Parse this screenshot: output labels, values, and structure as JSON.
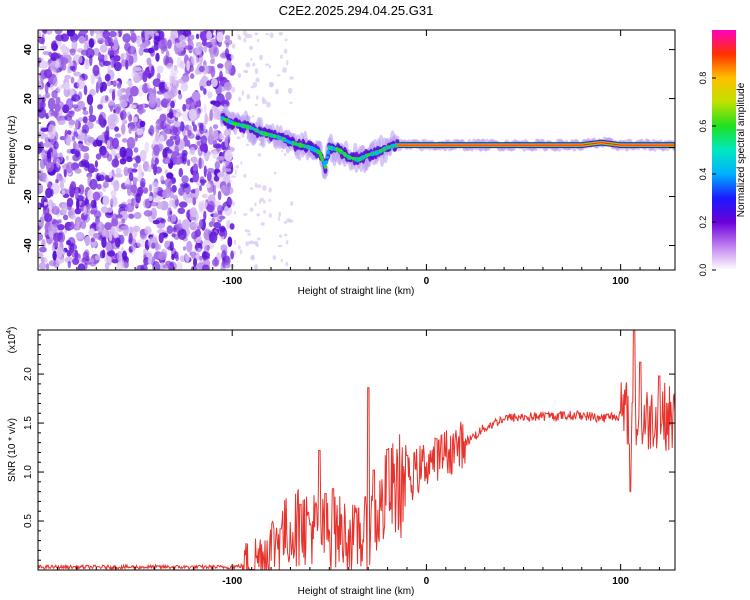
{
  "title": "C2E2.2025.294.04.25.G31",
  "chart_data": [
    {
      "type": "heatmap",
      "panel": "top",
      "xlabel": "Height of straight line (km)",
      "ylabel": "Frequency (Hz)",
      "xlim": [
        -200,
        128
      ],
      "ylim": [
        -50,
        48
      ],
      "xticks": [
        -100,
        0,
        100
      ],
      "yticks": [
        -40,
        -20,
        0,
        20,
        40
      ],
      "noise_region_x": [
        -200,
        -100
      ],
      "noise_region_y": [
        -50,
        48
      ],
      "ridge": {
        "x": [
          -105,
          -100,
          -95,
          -90,
          -85,
          -80,
          -75,
          -70,
          -65,
          -60,
          -55,
          -52,
          -50,
          -45,
          -40,
          -35,
          -30,
          -25,
          -20,
          -15,
          -10,
          0,
          20,
          40,
          60,
          80,
          90,
          100,
          110,
          120,
          128
        ],
        "y": [
          12,
          10,
          9,
          8,
          6,
          5,
          4,
          2,
          1,
          0,
          -2,
          -8,
          0,
          -1,
          -4,
          -5,
          -3,
          -2,
          0,
          1,
          1,
          1,
          1,
          1,
          1,
          1,
          2,
          1,
          1,
          1,
          1
        ]
      },
      "colorbar": {
        "label": "Normalized spectral amplitude",
        "min": 0,
        "max": 1,
        "ticks": [
          0.0,
          0.2,
          0.4,
          0.6,
          0.8
        ],
        "tick_labels": [
          "0.0",
          "0.2",
          "0.4",
          "0.6",
          "0.8"
        ],
        "colors": [
          "#ffffff",
          "#c080f0",
          "#6a00d8",
          "#1a1aff",
          "#00b0ff",
          "#00e8c0",
          "#20e020",
          "#c0e000",
          "#ffc000",
          "#ff3000",
          "#ff00c0"
        ]
      }
    },
    {
      "type": "line",
      "panel": "bottom",
      "xlabel": "Height of straight line (km)",
      "ylabel": "SNR (10 * v/v)",
      "multiplier_label": "(x10",
      "multiplier_exp": "4",
      "xlim": [
        -200,
        128
      ],
      "ylim": [
        0,
        2.45
      ],
      "xticks": [
        -100,
        0,
        100
      ],
      "yticks": [
        0.5,
        1.0,
        1.5,
        2.0
      ],
      "ytick_labels": [
        "0.5",
        "1.0",
        "1.5",
        "2.0"
      ],
      "line_color": "#e8312a",
      "trend": {
        "x": [
          -200,
          -100,
          -92,
          -85,
          -80,
          -75,
          -70,
          -65,
          -60,
          -55,
          -50,
          -45,
          -40,
          -35,
          -30,
          -25,
          -20,
          -15,
          -10,
          -5,
          0,
          10,
          20,
          30,
          40,
          60,
          80,
          90,
          100,
          105,
          110,
          115,
          120,
          128
        ],
        "y": [
          0.03,
          0.03,
          0.05,
          0.15,
          0.25,
          0.35,
          0.4,
          0.45,
          0.45,
          0.4,
          0.35,
          0.4,
          0.35,
          0.3,
          0.4,
          0.55,
          0.75,
          0.85,
          0.9,
          1.0,
          1.1,
          1.2,
          1.3,
          1.45,
          1.55,
          1.57,
          1.58,
          1.55,
          1.58,
          1.6,
          1.5,
          1.55,
          1.6,
          1.52
        ]
      },
      "spikes": [
        {
          "x": -75,
          "y": 0.42
        },
        {
          "x": -65,
          "y": 0.67
        },
        {
          "x": -55,
          "y": 1.22
        },
        {
          "x": -52,
          "y": 0.78
        },
        {
          "x": -48,
          "y": 0.83
        },
        {
          "x": -35,
          "y": 0.63
        },
        {
          "x": -30,
          "y": 1.86
        },
        {
          "x": -27,
          "y": 1.02
        },
        {
          "x": -20,
          "y": 1.23
        },
        {
          "x": -10,
          "y": 1.17
        },
        {
          "x": 5,
          "y": 1.34
        },
        {
          "x": 107,
          "y": 2.45
        },
        {
          "x": 105,
          "y": 0.8
        },
        {
          "x": 110,
          "y": 2.12
        },
        {
          "x": 120,
          "y": 1.98
        }
      ]
    }
  ]
}
